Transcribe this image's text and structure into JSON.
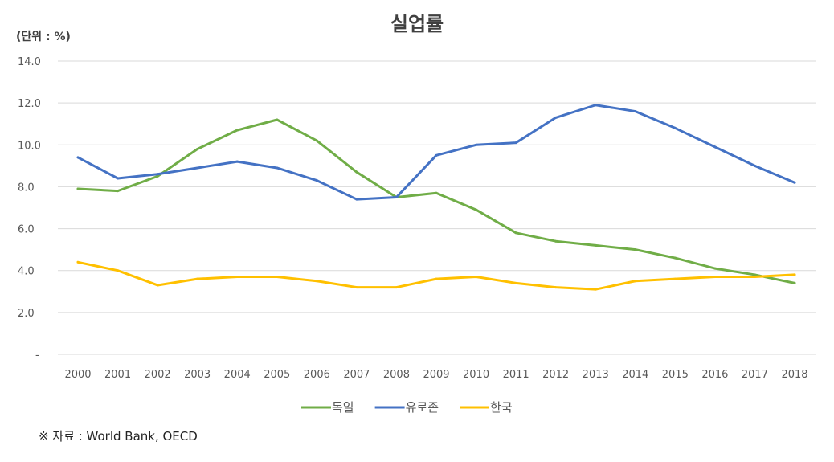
{
  "chart_data": {
    "type": "line",
    "title": "실업률",
    "unit_label": "(단위 : %)",
    "source": "※ 자료 : World Bank, OECD",
    "x": [
      "2000",
      "2001",
      "2002",
      "2003",
      "2004",
      "2005",
      "2006",
      "2007",
      "2008",
      "2009",
      "2010",
      "2011",
      "2012",
      "2013",
      "2014",
      "2015",
      "2016",
      "2017",
      "2018"
    ],
    "ylim": [
      0,
      14
    ],
    "yticks": [
      0,
      2,
      4,
      6,
      8,
      10,
      12,
      14
    ],
    "ytick_labels": [
      "-",
      "2.0",
      "4.0",
      "6.0",
      "8.0",
      "10.0",
      "12.0",
      "14.0"
    ],
    "grid": true,
    "legend_position": "bottom",
    "series": [
      {
        "name": "독일",
        "color": "#70AD47",
        "values": [
          7.9,
          7.8,
          8.5,
          9.8,
          10.7,
          11.2,
          10.2,
          8.7,
          7.5,
          7.7,
          6.9,
          5.8,
          5.4,
          5.2,
          5.0,
          4.6,
          4.1,
          3.8,
          3.4
        ]
      },
      {
        "name": "유로존",
        "color": "#4472C4",
        "values": [
          9.4,
          8.4,
          8.6,
          8.9,
          9.2,
          8.9,
          8.3,
          7.4,
          7.5,
          9.5,
          10.0,
          10.1,
          11.3,
          11.9,
          11.6,
          10.8,
          9.9,
          9.0,
          8.2
        ]
      },
      {
        "name": "한국",
        "color": "#FFC000",
        "values": [
          4.4,
          4.0,
          3.3,
          3.6,
          3.7,
          3.7,
          3.5,
          3.2,
          3.2,
          3.6,
          3.7,
          3.4,
          3.2,
          3.1,
          3.5,
          3.6,
          3.7,
          3.7,
          3.8
        ]
      }
    ]
  }
}
